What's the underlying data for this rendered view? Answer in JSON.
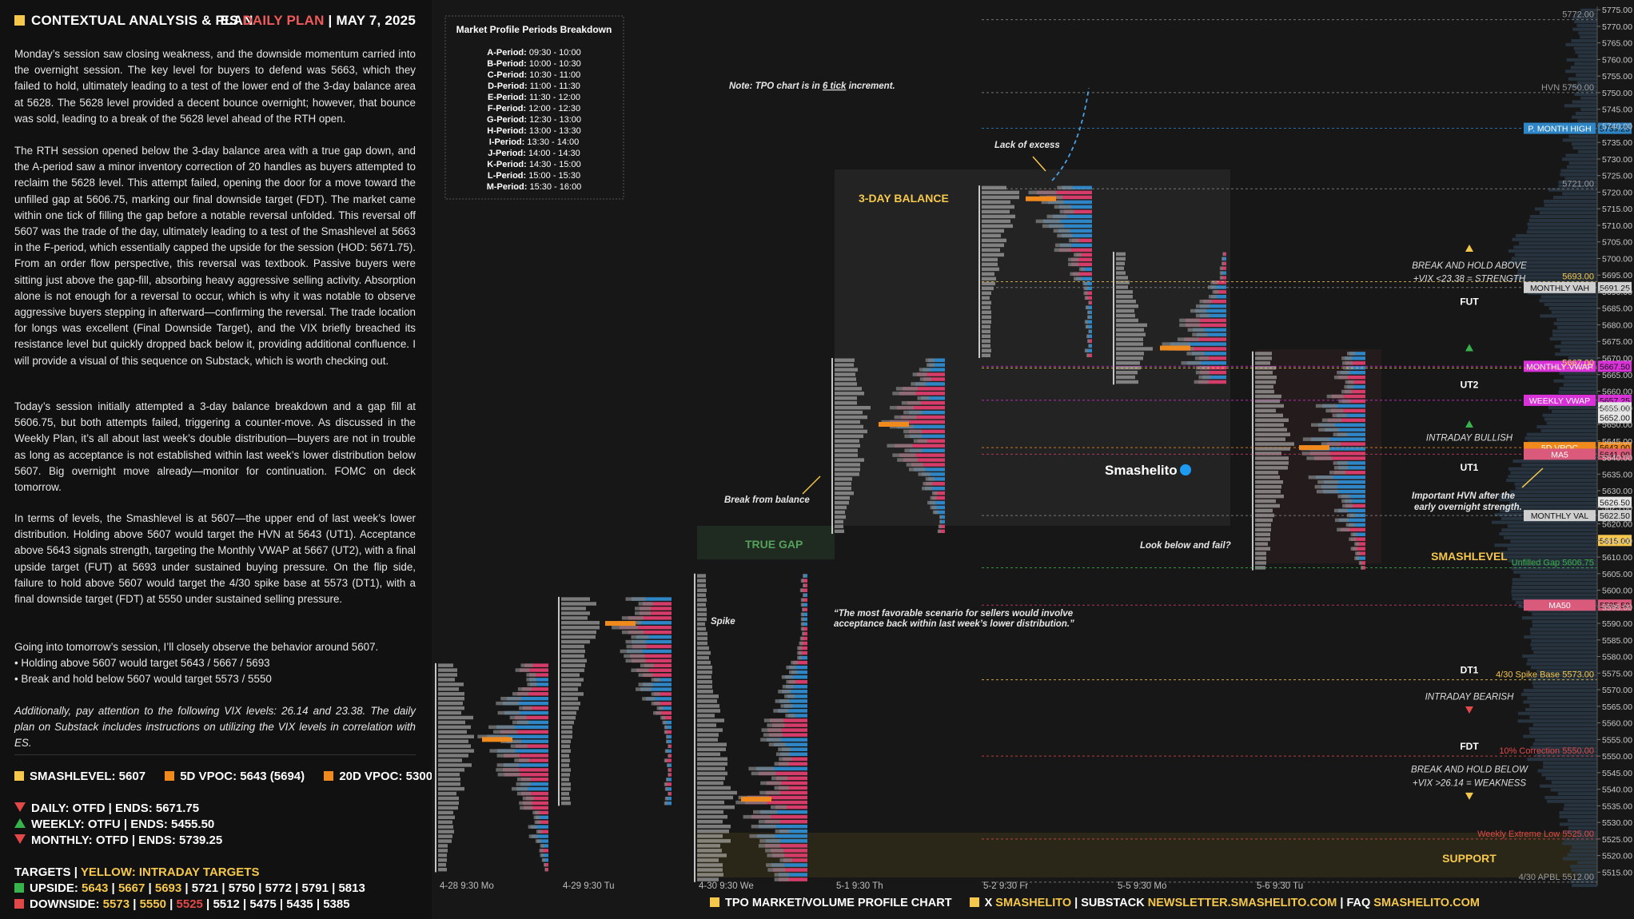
{
  "header": {
    "left_title": "CONTEXTUAL ANALYSIS & PLAN",
    "right_prefix": "ES",
    "right_highlight": "DAILY PLAN",
    "right_sep": "|",
    "right_date": "MAY 7, 2025"
  },
  "paragraphs": [
    "Monday’s session saw closing weakness, and the downside momentum carried into the overnight session. The key level for buyers to defend was 5663, which they failed to hold, ultimately leading to a test of the lower end of the 3-day balance area at 5628. The 5628 level provided a decent bounce overnight; however, that bounce was sold, leading to a break of the 5628 level ahead of the RTH open.",
    "The RTH session opened below the 3-day balance area with a true gap down, and the A-period saw a minor inventory correction of 20 handles as buyers attempted to reclaim the 5628 level. This attempt failed, opening the door for a move toward the unfilled gap at 5606.75, marking our final downside target (FDT). The market came within one tick of filling the gap before a notable reversal unfolded. This reversal off 5607 was the trade of the day, ultimately leading to a test of the Smashlevel at 5663 in the F-period, which essentially capped the upside for the session (HOD: 5671.75). From an order flow perspective, this reversal was textbook. Passive buyers were sitting just above the gap-fill, absorbing heavy aggressive selling activity. Absorption alone is not enough for a reversal to occur, which is why it was notable to observe aggressive buyers stepping in afterward—confirming the reversal. The trade location for longs was excellent (Final Downside Target), and the VIX briefly breached its resistance level but quickly dropped back below it, providing additional confluence. I will provide a visual of this sequence on Substack, which is worth checking out.",
    "Today’s session initially attempted a 3-day balance breakdown and a gap fill at 5606.75, but both attempts failed, triggering a counter-move. As discussed in the Weekly Plan, it’s all about last week’s double distribution—buyers are not in trouble as long as acceptance is not established within last week’s lower distribution below 5607. Big overnight move already—monitor for continuation. FOMC on deck tomorrow.",
    "In terms of levels, the Smashlevel is at 5607—the upper end of last week’s lower distribution. Holding above 5607 would target the HVN at 5643 (UT1). Acceptance above 5643 signals strength, targeting the Monthly VWAP at 5667 (UT2), with a final upside target (FUT) at 5693 under sustained buying pressure. On the flip side, failure to hold above 5607 would target the 4/30 spike base at 5573 (DT1), with a final downside target (FDT) at 5550 under sustained selling pressure.",
    "Going into tomorrow’s session, I’ll closely observe the behavior around 5607.",
    "• Holding above 5607 would target 5643 / 5667 / 5693",
    "• Break and hold below 5607 would target 5573 / 5550",
    "Additionally, pay attention to the following VIX levels: 26.14 and 23.38. The daily plan on Substack includes instructions on utilizing the VIX levels in correlation with ES."
  ],
  "stats": {
    "smashlevel": "SMASHLEVEL: 5607",
    "vpoc5d": "5D VPOC: 5643 (5694)",
    "vpoc20d": "20D VPOC: 5300",
    "daily": "DAILY: OTFD | ENDS: 5671.75",
    "weekly": "WEEKLY: OTFU | ENDS: 5455.50",
    "monthly": "MONTHLY: OTFD | ENDS: 5739.25",
    "targets_label": "TARGETS",
    "targets_yellow": "YELLOW: INTRADAY TARGETS",
    "upside_label": "UPSIDE:",
    "upside_yellow": [
      "5643",
      "5667",
      "5693"
    ],
    "upside_white": [
      "5721",
      "5750",
      "5772",
      "5791",
      "5813"
    ],
    "downside_label": "DOWNSIDE:",
    "downside_yellow": [
      "5573",
      "5550"
    ],
    "downside_red": [
      "5525"
    ],
    "downside_white": [
      "5512",
      "5475",
      "5435",
      "5385"
    ]
  },
  "colors": {
    "yellow": "#f5c84c",
    "orange": "#f08a1c",
    "blue": "#2f86c6",
    "pink": "#d63c6a",
    "grey": "#7a7a7a",
    "green": "#38b24a",
    "red": "#e24848",
    "magenta": "#d932d9"
  },
  "footer": {
    "chart_label": "TPO MARKET/VOLUME PROFILE CHART",
    "x_label": "X",
    "x_handle": "SMASHELITO",
    "substack_label": "SUBSTACK",
    "substack_url": "NEWSLETTER.SMASHELITO.COM",
    "faq_label": "FAQ",
    "faq_url": "SMASHELITO.COM"
  },
  "chart_data": {
    "type": "market_profile",
    "ylim": [
      5511,
      5776
    ],
    "y_ticks": [
      5515,
      5520,
      5525,
      5530,
      5535,
      5540,
      5545,
      5550,
      5555,
      5560,
      5565,
      5570,
      5575,
      5580,
      5585,
      5590,
      5595,
      5600,
      5605,
      5610,
      5615,
      5620,
      5625,
      5630,
      5635,
      5640,
      5645,
      5650,
      5655,
      5660,
      5665,
      5670,
      5675,
      5680,
      5685,
      5690,
      5695,
      5700,
      5705,
      5710,
      5715,
      5720,
      5725,
      5730,
      5735,
      5740,
      5745,
      5750,
      5755,
      5760,
      5765,
      5770,
      5775
    ],
    "y_tick_labels": [
      "5515.00",
      "5520.00",
      "5525.00",
      "5530.00",
      "5535.00",
      "5540.00",
      "5545.00",
      "5550.00",
      "5555.00",
      "5560.00",
      "5565.00",
      "5570.00",
      "5575.00",
      "5580.00",
      "5585.00",
      "5590.00",
      "5595.00",
      "5600.00",
      "5605.00",
      "5610.00",
      "5615.00",
      "5620.00",
      "5625.00",
      "5630.00",
      "5635.00",
      "5640.00",
      "5645.00",
      "5650.00",
      "5655.00",
      "5660.00",
      "5665.00",
      "5670.00",
      "5675.00",
      "5680.00",
      "5685.00",
      "5690.00",
      "5695.00",
      "5700.00",
      "5705.00",
      "5710.00",
      "5715.00",
      "5720.00",
      "5725.00",
      "5730.00",
      "5735.00",
      "5740.00",
      "5745.00",
      "5750.00",
      "5755.00",
      "5760.00",
      "5765.00",
      "5770.00",
      "5775.00"
    ],
    "sessions": [
      {
        "label": "4-28  9:30 Mo",
        "low": 5515,
        "high": 5578,
        "poc": 5555
      },
      {
        "label": "4-29  9:30 Tu",
        "low": 5535,
        "high": 5598,
        "poc": 5590
      },
      {
        "label": "4-30  9:30 We",
        "low": 5512,
        "high": 5605,
        "poc": 5537
      },
      {
        "label": "5-1  9:30 Th",
        "low": 5617,
        "high": 5670,
        "poc": 5650
      },
      {
        "label": "5-2  9:30 Fr",
        "low": 5670,
        "high": 5722,
        "poc": 5718
      },
      {
        "label": "5-5  9:30 Mo",
        "low": 5662,
        "high": 5702,
        "poc": 5673
      },
      {
        "label": "5-6  9:30 Tu",
        "low": 5606,
        "high": 5672,
        "poc": 5643
      }
    ],
    "levels": [
      {
        "price": 5772,
        "label": "5772.00",
        "style": "grey"
      },
      {
        "price": 5750,
        "label": "HVN  5750.00",
        "style": "grey"
      },
      {
        "price": 5739.25,
        "label": "P. MONTH HIGH",
        "value": "5739.25",
        "style": "blue"
      },
      {
        "price": 5721,
        "label": "5721.00",
        "style": "grey"
      },
      {
        "price": 5693,
        "label": "5693.00",
        "style": "yellow"
      },
      {
        "price": 5691.25,
        "label": "MONTHLY VAH",
        "value": "5691.25",
        "style": "greybox"
      },
      {
        "price": 5667.5,
        "label": "MONTHLY VWAP",
        "value": "5667.50",
        "style": "magenta"
      },
      {
        "price": 5667,
        "label": "5667.00",
        "style": "yellow"
      },
      {
        "price": 5657.25,
        "label": "WEEKLY VWAP",
        "value": "5657.25",
        "style": "magenta"
      },
      {
        "price": 5655,
        "label": "5655.00",
        "style": "tick"
      },
      {
        "price": 5652,
        "label": "5652.00",
        "style": "tick"
      },
      {
        "price": 5643,
        "label": "5D VPOC",
        "value": "5643.00",
        "style": "orange"
      },
      {
        "price": 5641,
        "label": "MA5",
        "value": "5641.00",
        "style": "pink"
      },
      {
        "price": 5626.5,
        "label": "5626.50",
        "style": "tick"
      },
      {
        "price": 5622.5,
        "label": "MONTHLY VAL",
        "value": "5622.50",
        "style": "greybox"
      },
      {
        "price": 5615,
        "label": "5615.00",
        "style": "yellowbox"
      },
      {
        "price": 5606.75,
        "label": "Unfilled Gap  5606.75",
        "style": "green"
      },
      {
        "price": 5595.5,
        "label": "MA50",
        "value": "5595.50",
        "style": "pink"
      },
      {
        "price": 5573,
        "label": "4/30 Spike Base  5573.00",
        "style": "yellow"
      },
      {
        "price": 5550,
        "label": "10% Correction  5550.00",
        "style": "red"
      },
      {
        "price": 5525,
        "label": "Weekly Extreme Low  5525.00",
        "style": "red"
      },
      {
        "price": 5512,
        "label": "4/30 APBL  5512.00",
        "style": "grey"
      }
    ],
    "zone_labels": {
      "fut": "FUT",
      "ut2": "UT2",
      "ut1": "UT1",
      "smashlevel": "SMASHLEVEL",
      "dt1": "DT1",
      "fdt": "FDT",
      "support": "SUPPORT",
      "break_above": "BREAK AND HOLD ABOVE",
      "break_above_vix": "+VIX <23.38 = STRENGTH",
      "intraday_bullish": "INTRADAY BULLISH",
      "intraday_bearish": "INTRADAY BEARISH",
      "break_below": "BREAK AND HOLD BELOW",
      "break_below_vix": "+VIX >26.14 = WEAKNESS"
    },
    "annotations": {
      "note_prefix": "Note:",
      "note_mid": "TPO chart is in",
      "note_tick": "6 tick",
      "note_end": "increment.",
      "lack_excess": "Lack of excess",
      "three_day": "3-DAY BALANCE",
      "true_gap": "TRUE GAP",
      "break_balance": "Break from balance",
      "spike": "Spike",
      "look_below": "Look below and fail?",
      "important_hvn": "Important HVN after the early overnight strength.",
      "quote": "“The most favorable scenario for sellers would involve acceptance back within last week’s lower distribution.”",
      "brand": "Smashelito"
    },
    "periods_title": "Market Profile Periods Breakdown",
    "periods": [
      {
        "k": "A-Period:",
        "v": "09:30 - 10:00"
      },
      {
        "k": "B-Period:",
        "v": "10:00 - 10:30"
      },
      {
        "k": "C-Period:",
        "v": "10:30 - 11:00"
      },
      {
        "k": "D-Period:",
        "v": "11:00 - 11:30"
      },
      {
        "k": "E-Period:",
        "v": "11:30 - 12:00"
      },
      {
        "k": "F-Period:",
        "v": "12:00 - 12:30"
      },
      {
        "k": "G-Period:",
        "v": "12:30 - 13:00"
      },
      {
        "k": "H-Period:",
        "v": "13:00 - 13:30"
      },
      {
        "k": "I-Period:",
        "v": "13:30 - 14:00"
      },
      {
        "k": "J-Period:",
        "v": "14:00 - 14:30"
      },
      {
        "k": "K-Period:",
        "v": "14:30 - 15:00"
      },
      {
        "k": "L-Period:",
        "v": "15:00 - 15:30"
      },
      {
        "k": "M-Period:",
        "v": "15:30 - 16:00"
      }
    ]
  }
}
